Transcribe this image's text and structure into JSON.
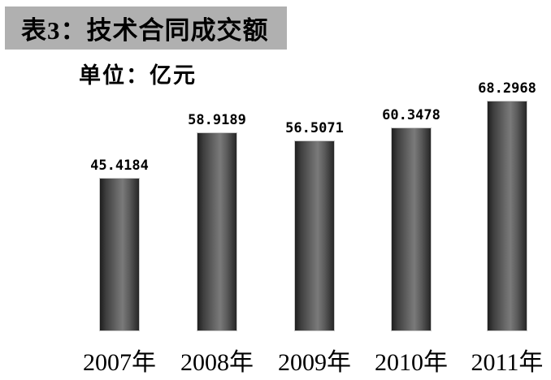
{
  "header": {
    "title": "表3：技术合同成交额",
    "unit_label": "单位：亿元"
  },
  "colors": {
    "background": "#ffffff",
    "banner_bg": "#b0b0b0",
    "text": "#000000",
    "bar_edge_dark": "#1e1e1e",
    "bar_center_light": "#7a7a7a",
    "bar_outline": "#c9c9c9"
  },
  "chart_data": {
    "type": "bar",
    "title": "表3：技术合同成交额",
    "subtitle": "单位：亿元",
    "unit": "亿元",
    "categories": [
      "2007年",
      "2008年",
      "2009年",
      "2010年",
      "2011年"
    ],
    "values": [
      45.4184,
      58.9189,
      56.5071,
      60.3478,
      68.2968
    ],
    "value_labels": [
      "45.4184",
      "58.9189",
      "56.5071",
      "60.3478",
      "68.2968"
    ],
    "xlabel": "",
    "ylabel": "亿元",
    "ylim": [
      0,
      70
    ],
    "grid": false,
    "legend": false,
    "axes_visible": false,
    "bar_style": "cylinder-gradient"
  }
}
